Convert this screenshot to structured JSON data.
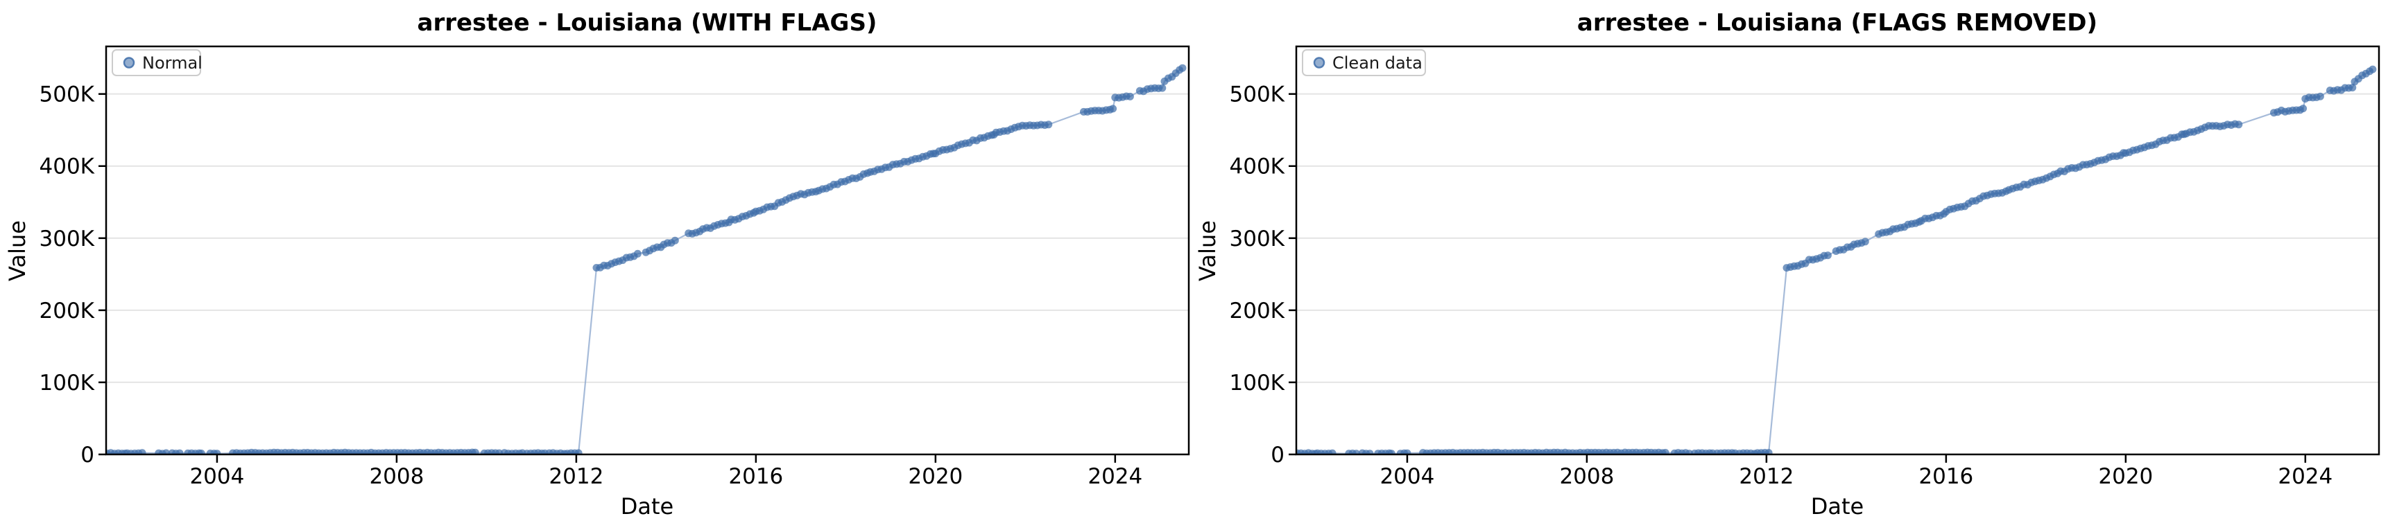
{
  "figure": {
    "background": "#ffffff",
    "style": {
      "marker": "#3d6ca8",
      "marker_alpha": 0.7,
      "line": "#96afd2",
      "line_alpha": 0.85,
      "grid": "#e4e4e4",
      "spine": "#000000",
      "legend_border": "#cccccc",
      "legend_bg": "#ffffff"
    }
  },
  "chart_data": [
    {
      "type": "scatter",
      "line_connected": true,
      "title": "arrestee - Louisiana (WITH FLAGS)",
      "xlabel": "Date",
      "ylabel": "Value",
      "legend": {
        "label": "Normal",
        "position": "upper left"
      },
      "grid": "horizontal",
      "xlim": [
        2001.53,
        2025.64
      ],
      "ylim": [
        0,
        566000
      ],
      "x_ticks": [
        {
          "label": "2004",
          "year": 2004
        },
        {
          "label": "2008",
          "year": 2008
        },
        {
          "label": "2012",
          "year": 2012
        },
        {
          "label": "2016",
          "year": 2016
        },
        {
          "label": "2020",
          "year": 2020
        },
        {
          "label": "2024",
          "year": 2024
        }
      ],
      "y_ticks": [
        {
          "label": "0",
          "value": 0
        },
        {
          "label": "100K",
          "value": 100000
        },
        {
          "label": "200K",
          "value": 200000
        },
        {
          "label": "300K",
          "value": 300000
        },
        {
          "label": "400K",
          "value": 400000
        },
        {
          "label": "500K",
          "value": 500000
        }
      ],
      "series": [
        {
          "name": "Normal",
          "sampling": "monthly points interpolated within each segment; consecutive segments joined by the line (visible gaps between segments)",
          "segments": [
            {
              "x0": 2001.55,
              "x1": 2001.95,
              "v0": 1800,
              "v1": 1400
            },
            {
              "x0": 2002.0,
              "x1": 2002.35,
              "v0": 1500,
              "v1": 1700
            },
            {
              "x0": 2002.7,
              "x1": 2002.9,
              "v0": 1400,
              "v1": 1400
            },
            {
              "x0": 2003.0,
              "x1": 2003.2,
              "v0": 1500,
              "v1": 1300
            },
            {
              "x0": 2003.35,
              "x1": 2003.65,
              "v0": 1600,
              "v1": 1400
            },
            {
              "x0": 2003.85,
              "x1": 2004.0,
              "v0": 1300,
              "v1": 1500
            },
            {
              "x0": 2004.35,
              "x1": 2009.75,
              "v0": 2000,
              "v1": 2400
            },
            {
              "x0": 2009.95,
              "x1": 2010.3,
              "v0": 1900,
              "v1": 1600
            },
            {
              "x0": 2010.4,
              "x1": 2010.8,
              "v0": 1700,
              "v1": 1500
            },
            {
              "x0": 2010.9,
              "x1": 2011.3,
              "v0": 1800,
              "v1": 1500
            },
            {
              "x0": 2011.4,
              "x1": 2011.75,
              "v0": 1600,
              "v1": 1400
            },
            {
              "x0": 2011.8,
              "x1": 2012.05,
              "v0": 1700,
              "v1": 2000
            },
            {
              "x0": 2012.45,
              "x1": 2012.9,
              "v0": 258000,
              "v1": 266000
            },
            {
              "x0": 2012.95,
              "x1": 2013.4,
              "v0": 269000,
              "v1": 278000
            },
            {
              "x0": 2013.55,
              "x1": 2013.9,
              "v0": 281000,
              "v1": 289000
            },
            {
              "x0": 2013.95,
              "x1": 2014.2,
              "v0": 291000,
              "v1": 296000
            },
            {
              "x0": 2014.5,
              "x1": 2014.78,
              "v0": 306000,
              "v1": 309000
            },
            {
              "x0": 2014.82,
              "x1": 2015.4,
              "v0": 312000,
              "v1": 322000
            },
            {
              "x0": 2015.45,
              "x1": 2015.95,
              "v0": 325000,
              "v1": 334000
            },
            {
              "x0": 2016.0,
              "x1": 2016.45,
              "v0": 337000,
              "v1": 346000
            },
            {
              "x0": 2016.5,
              "x1": 2016.95,
              "v0": 349000,
              "v1": 360000
            },
            {
              "x0": 2017.0,
              "x1": 2017.35,
              "v0": 361000,
              "v1": 364000
            },
            {
              "x0": 2017.4,
              "x1": 2018.5,
              "v0": 366000,
              "v1": 390000
            },
            {
              "x0": 2018.55,
              "x1": 2019.95,
              "v0": 392000,
              "v1": 417000
            },
            {
              "x0": 2020.0,
              "x1": 2021.3,
              "v0": 418000,
              "v1": 444000
            },
            {
              "x0": 2021.35,
              "x1": 2021.8,
              "v0": 446000,
              "v1": 453000
            },
            {
              "x0": 2021.85,
              "x1": 2022.55,
              "v0": 455000,
              "v1": 458000
            },
            {
              "x0": 2023.3,
              "x1": 2023.95,
              "v0": 475000,
              "v1": 479000
            },
            {
              "x0": 2024.0,
              "x1": 2024.35,
              "v0": 494000,
              "v1": 497000
            },
            {
              "x0": 2024.55,
              "x1": 2025.05,
              "v0": 504000,
              "v1": 509000
            },
            {
              "x0": 2025.1,
              "x1": 2025.5,
              "v0": 518000,
              "v1": 535000
            }
          ]
        }
      ]
    },
    {
      "type": "scatter",
      "line_connected": true,
      "title": "arrestee - Louisiana (FLAGS REMOVED)",
      "xlabel": "Date",
      "ylabel": "Value",
      "legend": {
        "label": "Clean data",
        "position": "upper left"
      },
      "grid": "horizontal",
      "xlim": [
        2001.53,
        2025.64
      ],
      "ylim": [
        0,
        566000
      ],
      "x_ticks": [
        {
          "label": "2004",
          "year": 2004
        },
        {
          "label": "2008",
          "year": 2008
        },
        {
          "label": "2012",
          "year": 2012
        },
        {
          "label": "2016",
          "year": 2016
        },
        {
          "label": "2020",
          "year": 2020
        },
        {
          "label": "2024",
          "year": 2024
        }
      ],
      "y_ticks": [
        {
          "label": "0",
          "value": 0
        },
        {
          "label": "100K",
          "value": 100000
        },
        {
          "label": "200K",
          "value": 200000
        },
        {
          "label": "300K",
          "value": 300000
        },
        {
          "label": "400K",
          "value": 400000
        },
        {
          "label": "500K",
          "value": 500000
        }
      ],
      "series": [
        {
          "name": "Clean data",
          "sampling": "monthly points interpolated within each segment; consecutive segments joined by the line (visible gaps between segments)",
          "segments": [
            {
              "x0": 2001.55,
              "x1": 2001.95,
              "v0": 1800,
              "v1": 1400
            },
            {
              "x0": 2002.0,
              "x1": 2002.35,
              "v0": 1500,
              "v1": 1700
            },
            {
              "x0": 2002.7,
              "x1": 2002.9,
              "v0": 1400,
              "v1": 1400
            },
            {
              "x0": 2003.0,
              "x1": 2003.2,
              "v0": 1500,
              "v1": 1300
            },
            {
              "x0": 2003.35,
              "x1": 2003.65,
              "v0": 1600,
              "v1": 1400
            },
            {
              "x0": 2003.85,
              "x1": 2004.0,
              "v0": 1300,
              "v1": 1500
            },
            {
              "x0": 2004.35,
              "x1": 2009.75,
              "v0": 2000,
              "v1": 2400
            },
            {
              "x0": 2009.95,
              "x1": 2010.3,
              "v0": 1900,
              "v1": 1600
            },
            {
              "x0": 2010.4,
              "x1": 2010.8,
              "v0": 1700,
              "v1": 1500
            },
            {
              "x0": 2010.9,
              "x1": 2011.3,
              "v0": 1800,
              "v1": 1500
            },
            {
              "x0": 2011.4,
              "x1": 2011.75,
              "v0": 1600,
              "v1": 1400
            },
            {
              "x0": 2011.8,
              "x1": 2012.05,
              "v0": 1700,
              "v1": 2000
            },
            {
              "x0": 2012.45,
              "x1": 2012.9,
              "v0": 258000,
              "v1": 266000
            },
            {
              "x0": 2012.95,
              "x1": 2013.4,
              "v0": 269000,
              "v1": 278000
            },
            {
              "x0": 2013.55,
              "x1": 2013.9,
              "v0": 281000,
              "v1": 289000
            },
            {
              "x0": 2013.95,
              "x1": 2014.2,
              "v0": 291000,
              "v1": 296000
            },
            {
              "x0": 2014.5,
              "x1": 2014.78,
              "v0": 306000,
              "v1": 309000
            },
            {
              "x0": 2014.82,
              "x1": 2015.4,
              "v0": 312000,
              "v1": 322000
            },
            {
              "x0": 2015.45,
              "x1": 2015.95,
              "v0": 325000,
              "v1": 334000
            },
            {
              "x0": 2016.0,
              "x1": 2016.45,
              "v0": 337000,
              "v1": 346000
            },
            {
              "x0": 2016.5,
              "x1": 2016.95,
              "v0": 349000,
              "v1": 360000
            },
            {
              "x0": 2017.0,
              "x1": 2017.35,
              "v0": 361000,
              "v1": 364000
            },
            {
              "x0": 2017.4,
              "x1": 2018.5,
              "v0": 366000,
              "v1": 390000
            },
            {
              "x0": 2018.55,
              "x1": 2019.95,
              "v0": 392000,
              "v1": 417000
            },
            {
              "x0": 2020.0,
              "x1": 2021.3,
              "v0": 418000,
              "v1": 444000
            },
            {
              "x0": 2021.35,
              "x1": 2021.8,
              "v0": 446000,
              "v1": 453000
            },
            {
              "x0": 2021.85,
              "x1": 2022.55,
              "v0": 455000,
              "v1": 458000
            },
            {
              "x0": 2023.3,
              "x1": 2023.95,
              "v0": 475000,
              "v1": 479000
            },
            {
              "x0": 2024.0,
              "x1": 2024.35,
              "v0": 494000,
              "v1": 497000
            },
            {
              "x0": 2024.55,
              "x1": 2025.05,
              "v0": 504000,
              "v1": 509000
            },
            {
              "x0": 2025.1,
              "x1": 2025.5,
              "v0": 518000,
              "v1": 535000
            }
          ]
        }
      ]
    }
  ]
}
